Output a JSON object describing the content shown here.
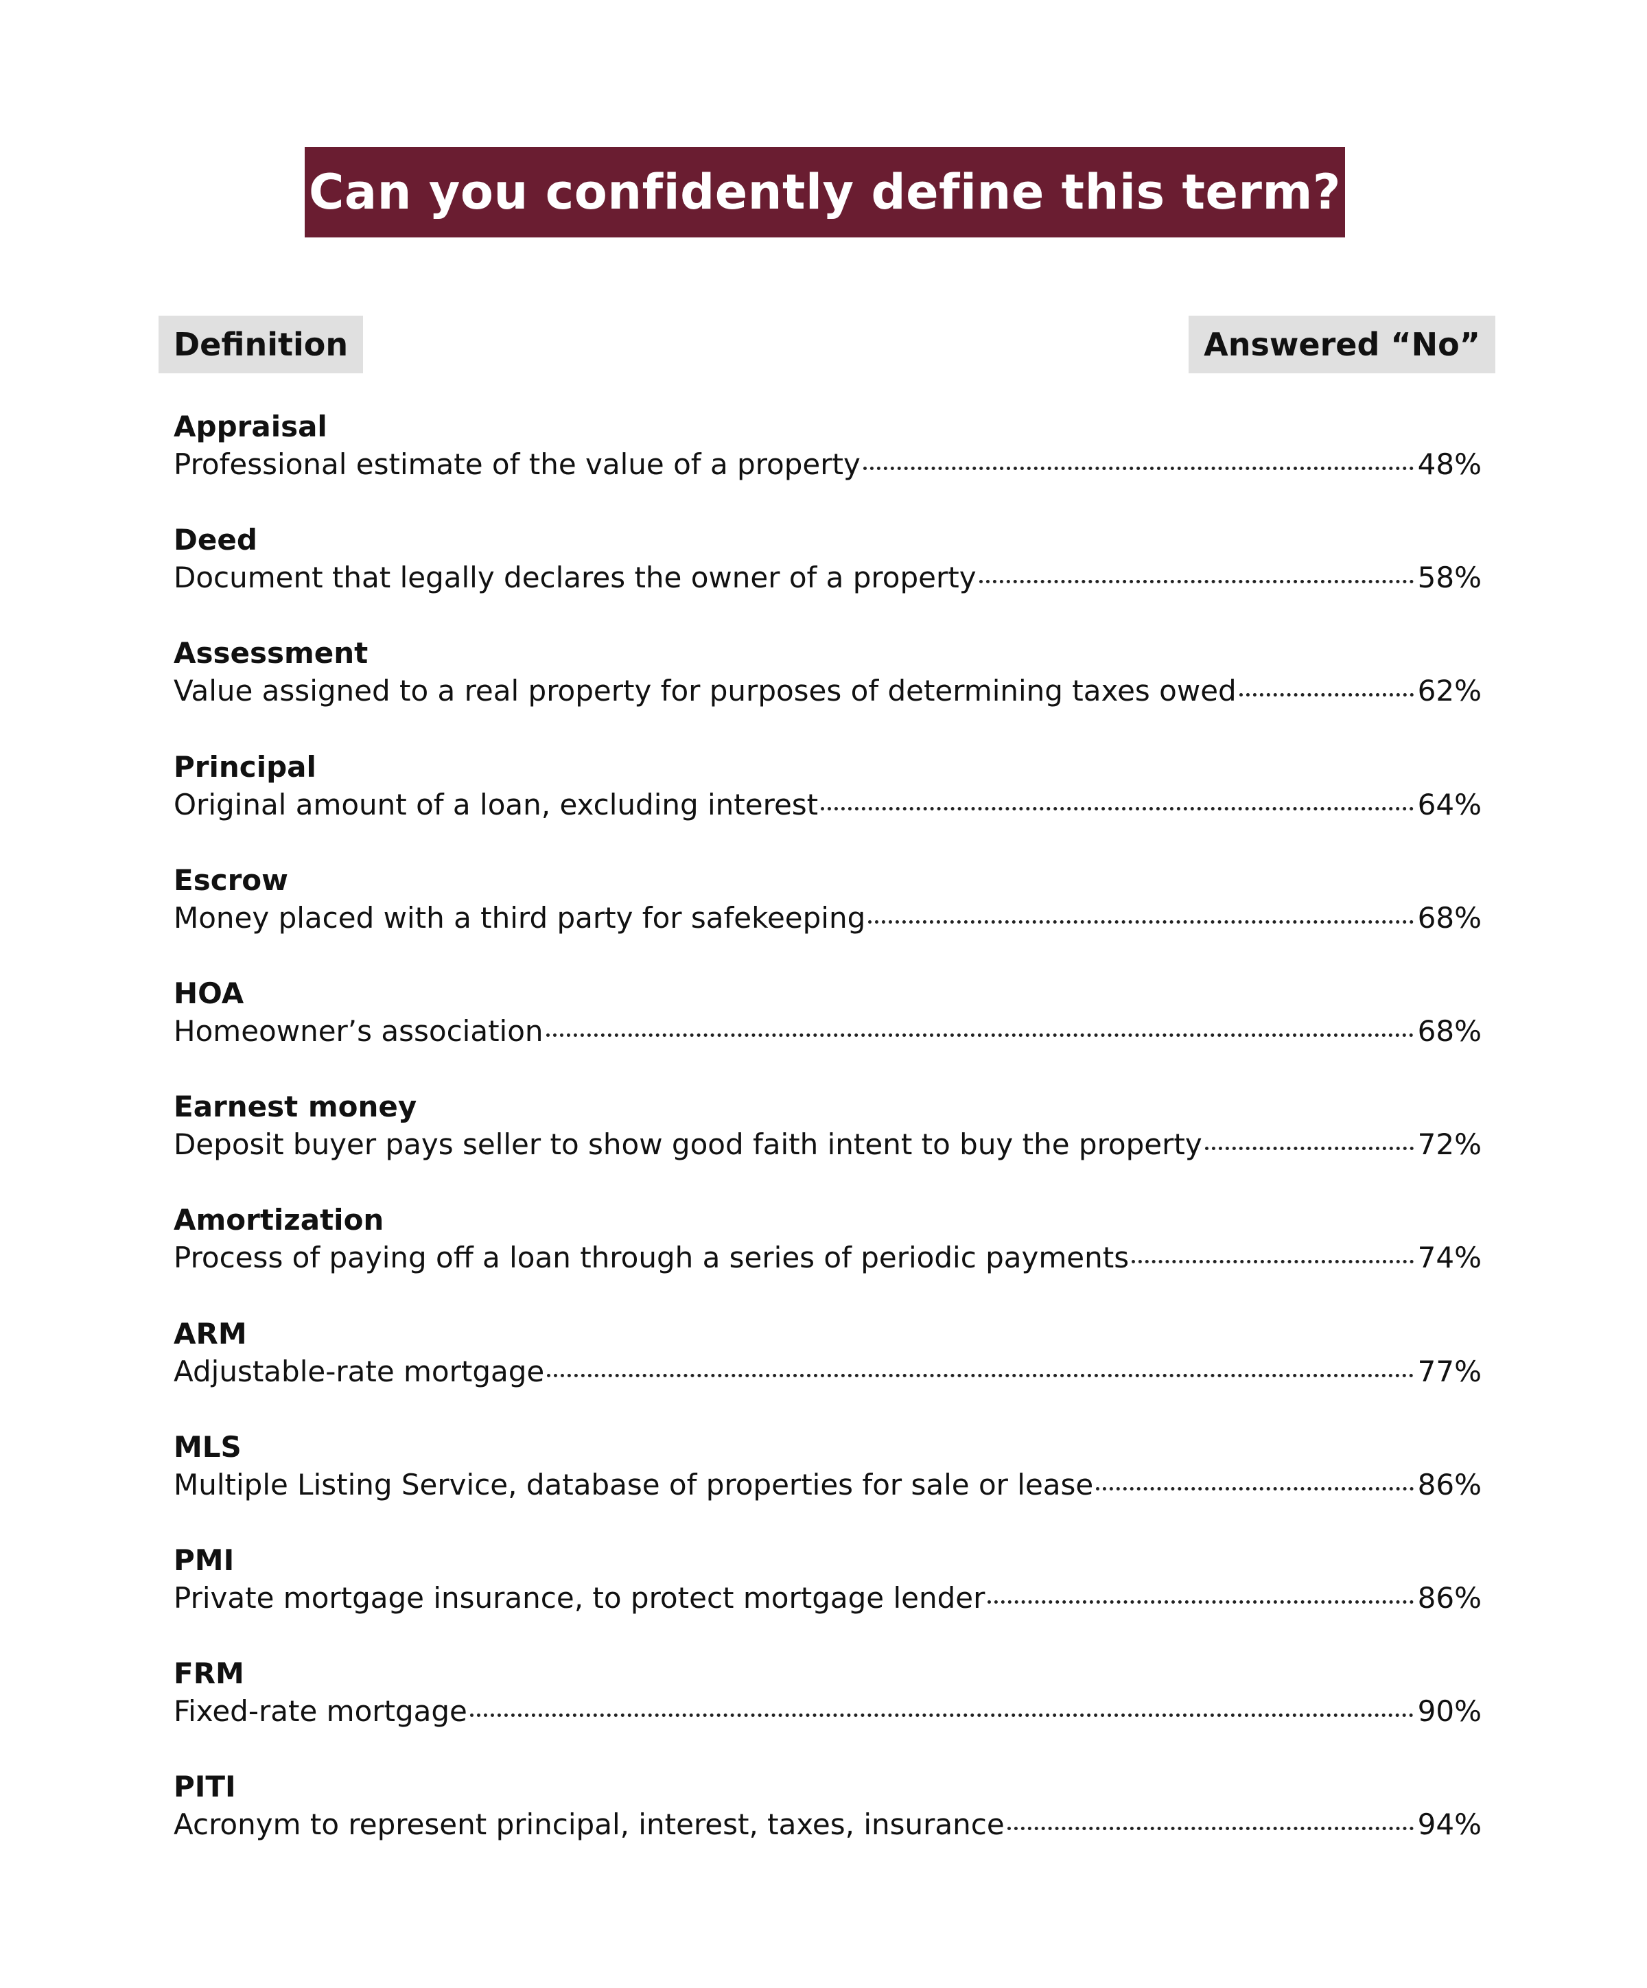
{
  "title": "Can you confidently define this term?",
  "headers": {
    "left": "Definition",
    "right": "Answered “No”"
  },
  "colors": {
    "banner": "#6a1d31",
    "header_bg": "#e0e0e0"
  },
  "terms": [
    {
      "term": "Appraisal",
      "definition": "Professional estimate of the value of a property",
      "percent": "48%"
    },
    {
      "term": "Deed",
      "definition": "Document that legally declares the owner of a property",
      "percent": "58%"
    },
    {
      "term": "Assessment",
      "definition": "Value assigned to a real property for purposes of determining taxes owed",
      "percent": "62%"
    },
    {
      "term": "Principal",
      "definition": "Original amount of a loan, excluding interest",
      "percent": "64%"
    },
    {
      "term": "Escrow",
      "definition": "Money placed with a third party for safekeeping",
      "percent": "68%"
    },
    {
      "term": "HOA",
      "definition": "Homeowner’s association",
      "percent": "68%"
    },
    {
      "term": "Earnest money",
      "definition": "Deposit buyer pays seller to show good faith intent to buy the property",
      "percent": "72%"
    },
    {
      "term": "Amortization",
      "definition": "Process of paying off a loan through a series of periodic payments",
      "percent": "74%"
    },
    {
      "term": "ARM",
      "definition": "Adjustable-rate mortgage",
      "percent": "77%"
    },
    {
      "term": "MLS",
      "definition": "Multiple Listing Service, database of properties for sale or lease",
      "percent": "86%"
    },
    {
      "term": "PMI",
      "definition": "Private mortgage insurance, to protect mortgage lender",
      "percent": "86%"
    },
    {
      "term": "FRM",
      "definition": "Fixed-rate mortgage",
      "percent": "90%"
    },
    {
      "term": "PITI",
      "definition": "Acronym to represent principal, interest, taxes, insurance",
      "percent": "94%"
    }
  ]
}
